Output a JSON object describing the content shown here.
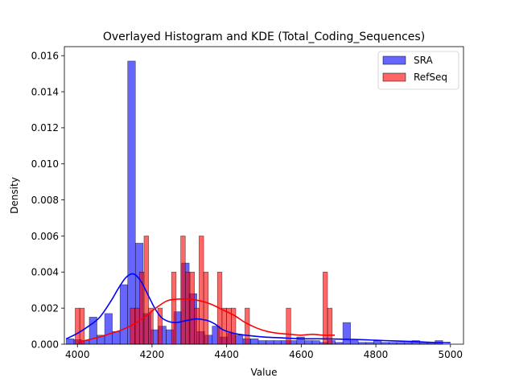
{
  "chart_data": {
    "type": "histogram",
    "title": "Overlayed Histogram and KDE (Total_Coding_Sequences)",
    "xlabel": "Value",
    "ylabel": "Density",
    "xlim": [
      3965,
      5035
    ],
    "ylim": [
      0,
      0.0165
    ],
    "xticks": [
      4000,
      4200,
      4400,
      4600,
      4800,
      5000
    ],
    "xtick_labels": [
      "4000",
      "4200",
      "4400",
      "4600",
      "4800",
      "5000"
    ],
    "yticks": [
      0,
      0.002,
      0.004,
      0.006,
      0.008,
      0.01,
      0.012,
      0.014,
      0.016
    ],
    "ytick_labels": [
      "0.000",
      "0.002",
      "0.004",
      "0.006",
      "0.008",
      "0.010",
      "0.012",
      "0.014",
      "0.016"
    ],
    "grid": false,
    "legend_position": "top-right",
    "series": [
      {
        "name": "SRA",
        "color": "#0000ff",
        "bin_start": 3970,
        "bin_width": 20.6,
        "density": [
          0.0003,
          0.00025,
          0.0002,
          0.0015,
          0.0005,
          0.0017,
          0.0007,
          0.0033,
          0.0157,
          0.0056,
          0.0017,
          0.0008,
          0.001,
          0.0008,
          0.0018,
          0.0045,
          0.0028,
          0.0007,
          0.0005,
          0.001,
          0.0004,
          0.0006,
          0.0005,
          0.0003,
          0.0003,
          0.0002,
          0.0002,
          0.0002,
          0.0002,
          0.0002,
          0.0004,
          0.0002,
          0.0002,
          0.0001,
          0.0002,
          0.0001,
          0.0012,
          0.0002,
          0.0001,
          0.0001,
          0.0002,
          0.0001,
          0.0001,
          0.0001,
          0.0001,
          0.0002,
          0.0001,
          0.0001,
          0.0002
        ],
        "kde": {
          "x": [
            3970,
            4000,
            4030,
            4060,
            4090,
            4110,
            4130,
            4150,
            4170,
            4190,
            4210,
            4230,
            4260,
            4290,
            4320,
            4350,
            4370,
            4390,
            4420,
            4450,
            4500,
            4550,
            4600,
            4650,
            4700,
            4750,
            4800,
            4850,
            4900,
            4950,
            5000
          ],
          "y": [
            0.0003,
            0.0006,
            0.001,
            0.0015,
            0.0024,
            0.0031,
            0.0037,
            0.0039,
            0.0035,
            0.0027,
            0.0019,
            0.0014,
            0.0012,
            0.0013,
            0.0014,
            0.0013,
            0.0011,
            0.0008,
            0.0006,
            0.0005,
            0.0004,
            0.00035,
            0.0003,
            0.0003,
            0.00028,
            0.00026,
            0.00022,
            0.00018,
            0.00015,
            0.0001,
            8e-05
          ]
        }
      },
      {
        "name": "RefSeq",
        "color": "#ff0000",
        "bin_start": 3994,
        "bin_width": 12.3,
        "density": [
          0.002,
          0.002,
          0.0,
          0.0,
          0.0,
          0.0,
          0.0,
          0.0,
          0.0,
          0.0,
          0.0,
          0.0,
          0.002,
          0.002,
          0.004,
          0.006,
          0.002,
          0.0,
          0.002,
          0.0,
          0.0,
          0.004,
          0.0,
          0.006,
          0.004,
          0.004,
          0.002,
          0.006,
          0.004,
          0.0,
          0.0,
          0.004,
          0.002,
          0.002,
          0.002,
          0.0,
          0.0,
          0.002,
          0.0,
          0.0,
          0.0,
          0.0,
          0.0,
          0.0,
          0.0,
          0.0,
          0.002,
          0.0,
          0.0,
          0.0,
          0.0,
          0.0,
          0.0,
          0.0,
          0.004,
          0.002
        ],
        "kde": {
          "x": [
            4000,
            4030,
            4060,
            4090,
            4120,
            4150,
            4180,
            4210,
            4240,
            4270,
            4300,
            4330,
            4360,
            4390,
            4420,
            4450,
            4480,
            4510,
            4540,
            4570,
            4600,
            4630,
            4660,
            4690
          ],
          "y": [
            0.0001,
            0.00025,
            0.0004,
            0.0006,
            0.0008,
            0.0011,
            0.0015,
            0.002,
            0.0024,
            0.0025,
            0.0025,
            0.0024,
            0.0022,
            0.0019,
            0.0016,
            0.0012,
            0.0009,
            0.0007,
            0.0006,
            0.00055,
            0.0005,
            0.00055,
            0.0005,
            0.0005
          ]
        }
      }
    ]
  }
}
